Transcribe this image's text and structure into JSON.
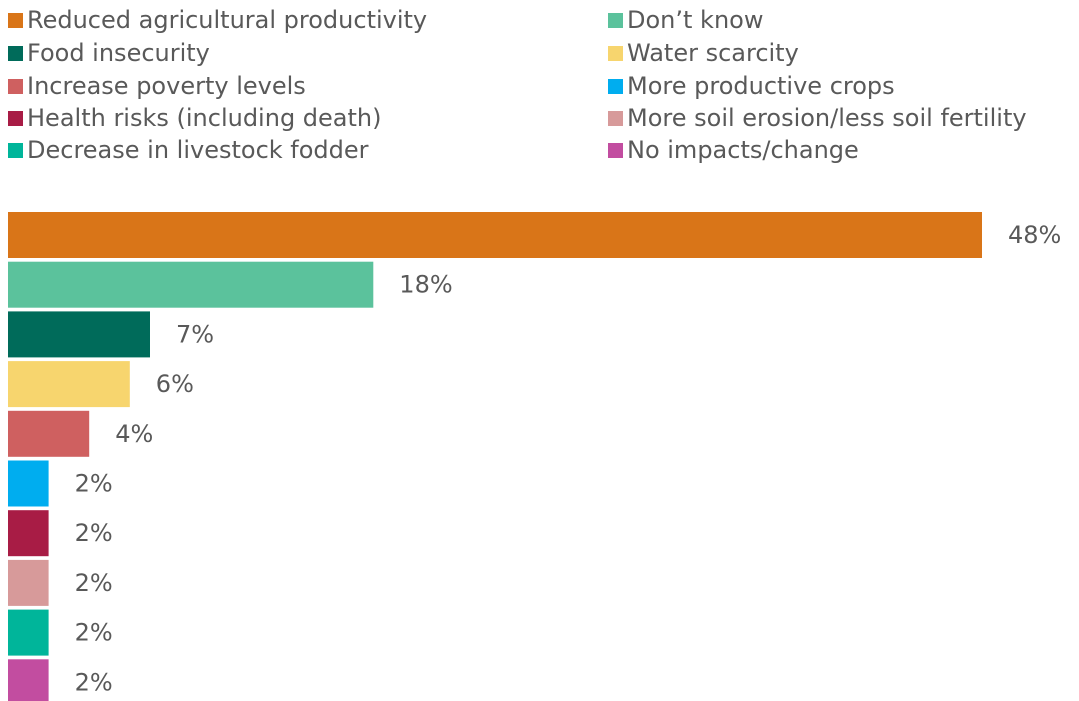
{
  "chart_data": {
    "type": "bar",
    "orientation": "horizontal",
    "legend_position": "top",
    "grid": false,
    "xlim": [
      0,
      48
    ],
    "value_suffix": "%",
    "categories": [
      "Reduced agricultural productivity",
      "Don’t know",
      "Food insecurity",
      "Water scarcity",
      "Increase poverty levels",
      "More productive crops",
      "Health risks (including death)",
      "More soil erosion/less soil fertility",
      "Decrease in livestock fodder",
      "No impacts/change"
    ],
    "values": [
      48,
      18,
      7,
      6,
      4,
      2,
      2,
      2,
      2,
      2
    ],
    "data_labels": [
      "48%",
      "18%",
      "7%",
      "6%",
      "4%",
      "2%",
      "2%",
      "2%",
      "2%",
      "2%"
    ],
    "colors": [
      "#D97518",
      "#5BC29C",
      "#006B5A",
      "#F7D56E",
      "#CF6060",
      "#00ADEF",
      "#A81C45",
      "#D79A9A",
      "#00B59A",
      "#C24DA0"
    ]
  },
  "legend": {
    "items": [
      {
        "label": "Reduced agricultural productivity",
        "color": "#D97518"
      },
      {
        "label": "Food insecurity",
        "color": "#006B5A"
      },
      {
        "label": "Increase poverty levels",
        "color": "#CF6060"
      },
      {
        "label": "Health risks (including death)",
        "color": "#A81C45"
      },
      {
        "label": "Decrease in livestock fodder",
        "color": "#00B59A"
      },
      {
        "label": "Don’t know",
        "color": "#5BC29C"
      },
      {
        "label": "Water scarcity",
        "color": "#F7D56E"
      },
      {
        "label": "More productive crops",
        "color": "#00ADEF"
      },
      {
        "label": "More soil erosion/less soil fertility",
        "color": "#D79A9A"
      },
      {
        "label": "No impacts/change",
        "color": "#C24DA0"
      }
    ]
  }
}
